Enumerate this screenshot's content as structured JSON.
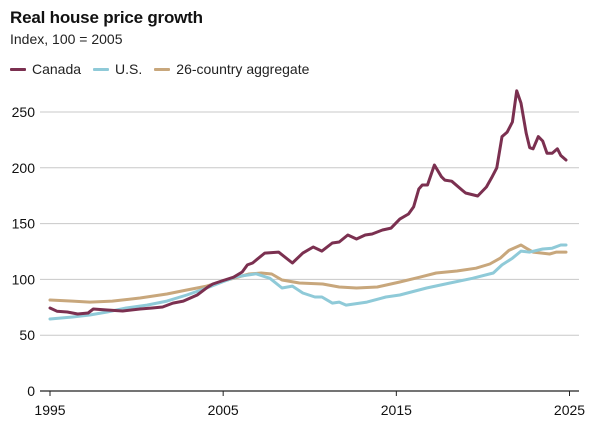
{
  "header": {
    "title": "Real house price growth",
    "subtitle": "Index, 100 = 2005"
  },
  "legend": [
    {
      "label": "Canada",
      "color": "#7b3050"
    },
    {
      "label": "U.S.",
      "color": "#8fcad8"
    },
    {
      "label": "26-country aggregate",
      "color": "#c8a77c"
    }
  ],
  "chart_data": {
    "type": "line",
    "title": "Real house price growth",
    "subtitle": "Index, 100 = 2005",
    "xlabel": "",
    "ylabel": "",
    "xlim": [
      1995,
      2025
    ],
    "ylim": [
      0,
      270
    ],
    "grid": true,
    "legend_position": "top-left",
    "x_ticks": [
      1995,
      2005,
      2015,
      2025
    ],
    "y_ticks": [
      0,
      50,
      100,
      150,
      200,
      250
    ],
    "series": [
      {
        "name": "26-country aggregate",
        "color": "#c8a77c",
        "points": [
          [
            1995.0,
            81.5
          ],
          [
            1996.3,
            80.6
          ],
          [
            1997.3,
            79.7
          ],
          [
            1998.6,
            80.6
          ],
          [
            2000.2,
            83.3
          ],
          [
            2001.75,
            86.9
          ],
          [
            2002.9,
            90.5
          ],
          [
            2004.05,
            94
          ],
          [
            2005.0,
            98.5
          ],
          [
            2005.6,
            101
          ],
          [
            2006.5,
            104.8
          ],
          [
            2007.2,
            105.7
          ],
          [
            2007.8,
            104.8
          ],
          [
            2008.4,
            99.5
          ],
          [
            2009.4,
            96.8
          ],
          [
            2010.75,
            95.9
          ],
          [
            2011.7,
            93.2
          ],
          [
            2012.7,
            92.3
          ],
          [
            2013.9,
            93.2
          ],
          [
            2015.2,
            97.7
          ],
          [
            2016.35,
            102
          ],
          [
            2017.3,
            105.7
          ],
          [
            2018.5,
            107.5
          ],
          [
            2019.6,
            110
          ],
          [
            2020.4,
            113.8
          ],
          [
            2021.0,
            119
          ],
          [
            2021.5,
            126
          ],
          [
            2022.2,
            130.8
          ],
          [
            2022.5,
            128
          ],
          [
            2022.9,
            124.5
          ],
          [
            2023.85,
            122.8
          ],
          [
            2024.25,
            124.5
          ],
          [
            2024.8,
            124.5
          ]
        ]
      },
      {
        "name": "U.S.",
        "color": "#8fcad8",
        "points": [
          [
            1995.0,
            64.5
          ],
          [
            1996.3,
            66.3
          ],
          [
            1997.3,
            68.1
          ],
          [
            1998.3,
            70.8
          ],
          [
            1999.4,
            74.4
          ],
          [
            2000.6,
            77
          ],
          [
            2001.75,
            80.6
          ],
          [
            2002.9,
            86
          ],
          [
            2004.05,
            92.3
          ],
          [
            2005.0,
            98
          ],
          [
            2005.8,
            102.5
          ],
          [
            2006.9,
            105
          ],
          [
            2007.7,
            101
          ],
          [
            2008.4,
            92.3
          ],
          [
            2009.0,
            94
          ],
          [
            2009.6,
            87.8
          ],
          [
            2010.3,
            84.2
          ],
          [
            2010.7,
            84.2
          ],
          [
            2011.3,
            78.8
          ],
          [
            2011.7,
            79.7
          ],
          [
            2012.1,
            77
          ],
          [
            2013.3,
            79.7
          ],
          [
            2014.4,
            84.2
          ],
          [
            2015.2,
            86
          ],
          [
            2016.75,
            92.3
          ],
          [
            2018.1,
            96.8
          ],
          [
            2019.4,
            101
          ],
          [
            2020.6,
            105.7
          ],
          [
            2021.1,
            113
          ],
          [
            2021.7,
            119
          ],
          [
            2022.2,
            125.4
          ],
          [
            2022.7,
            124.5
          ],
          [
            2023.45,
            127.2
          ],
          [
            2024.0,
            128
          ],
          [
            2024.5,
            130.8
          ],
          [
            2024.8,
            130.8
          ]
        ]
      },
      {
        "name": "Canada",
        "color": "#7b3050",
        "points": [
          [
            1995.0,
            74.4
          ],
          [
            1995.4,
            71.5
          ],
          [
            1996.0,
            70.8
          ],
          [
            1996.6,
            69
          ],
          [
            1997.2,
            69.9
          ],
          [
            1997.5,
            73.5
          ],
          [
            1998.3,
            72.6
          ],
          [
            1999.2,
            71.7
          ],
          [
            2000.2,
            73.5
          ],
          [
            2000.9,
            74.4
          ],
          [
            2001.5,
            75.3
          ],
          [
            2002.1,
            78.8
          ],
          [
            2002.7,
            80.6
          ],
          [
            2003.5,
            86
          ],
          [
            2004.1,
            93
          ],
          [
            2004.4,
            95.9
          ],
          [
            2005.0,
            99
          ],
          [
            2005.6,
            102
          ],
          [
            2006.1,
            106.6
          ],
          [
            2006.4,
            113
          ],
          [
            2006.7,
            114.7
          ],
          [
            2007.4,
            123.6
          ],
          [
            2008.2,
            124.5
          ],
          [
            2009.0,
            114.7
          ],
          [
            2009.6,
            123.6
          ],
          [
            2010.2,
            129
          ],
          [
            2010.7,
            125.4
          ],
          [
            2011.3,
            132.6
          ],
          [
            2011.7,
            133.5
          ],
          [
            2012.2,
            139.8
          ],
          [
            2012.7,
            136.2
          ],
          [
            2013.2,
            139.8
          ],
          [
            2013.6,
            140.7
          ],
          [
            2014.2,
            144.3
          ],
          [
            2014.7,
            146
          ],
          [
            2015.2,
            154
          ],
          [
            2015.7,
            158.6
          ],
          [
            2016.0,
            165
          ],
          [
            2016.3,
            181
          ],
          [
            2016.5,
            184.6
          ],
          [
            2016.8,
            184.6
          ],
          [
            2017.2,
            202.5
          ],
          [
            2017.6,
            192
          ],
          [
            2017.8,
            189
          ],
          [
            2018.2,
            188
          ],
          [
            2018.8,
            180
          ],
          [
            2019.0,
            177.4
          ],
          [
            2019.7,
            174.7
          ],
          [
            2020.2,
            182.8
          ],
          [
            2020.5,
            191
          ],
          [
            2020.8,
            200
          ],
          [
            2021.1,
            228
          ],
          [
            2021.4,
            232
          ],
          [
            2021.7,
            241
          ],
          [
            2021.95,
            269
          ],
          [
            2022.2,
            258
          ],
          [
            2022.5,
            231
          ],
          [
            2022.7,
            218
          ],
          [
            2022.9,
            217
          ],
          [
            2023.2,
            228
          ],
          [
            2023.45,
            224
          ],
          [
            2023.7,
            213
          ],
          [
            2024.0,
            213
          ],
          [
            2024.3,
            217
          ],
          [
            2024.5,
            211
          ],
          [
            2024.8,
            207
          ]
        ]
      }
    ]
  }
}
